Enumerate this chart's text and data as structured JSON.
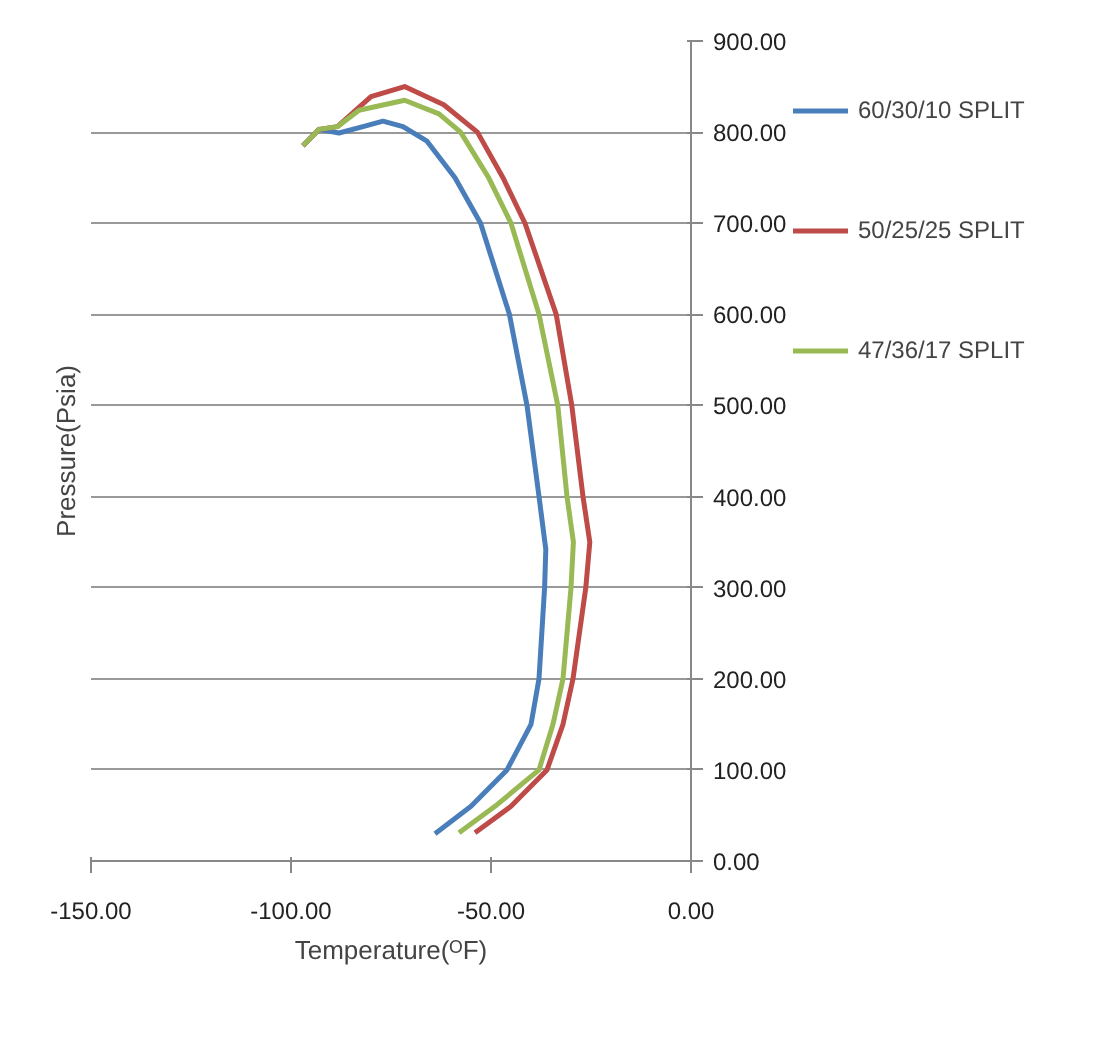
{
  "chart_data": {
    "type": "line",
    "xlabel": "Temperature(ᴼF)",
    "ylabel": "Pressure(Psia)",
    "xlim": [
      -150,
      0
    ],
    "ylim": [
      0,
      900
    ],
    "xticks": [
      {
        "value": -150,
        "label": "-150.00"
      },
      {
        "value": -100,
        "label": "-100.00"
      },
      {
        "value": -50,
        "label": "-50.00"
      },
      {
        "value": 0,
        "label": "0.00"
      }
    ],
    "yticks": [
      {
        "value": 0,
        "label": "0.00"
      },
      {
        "value": 100,
        "label": "100.00"
      },
      {
        "value": 200,
        "label": "200.00"
      },
      {
        "value": 300,
        "label": "300.00"
      },
      {
        "value": 400,
        "label": "400.00"
      },
      {
        "value": 500,
        "label": "500.00"
      },
      {
        "value": 600,
        "label": "600.00"
      },
      {
        "value": 700,
        "label": "700.00"
      },
      {
        "value": 800,
        "label": "800.00"
      },
      {
        "value": 900,
        "label": "900.00"
      }
    ],
    "grid": "y",
    "legend": "right",
    "marker": "none",
    "line_style": "solid",
    "series": [
      {
        "name": "60/30/10 SPLIT",
        "color": "#4a7ebb",
        "x": [
          -64,
          -55,
          -46,
          -40,
          -38,
          -36.6,
          -36.3,
          -38,
          -41,
          -45.4,
          -52.6,
          -59,
          -66,
          -72,
          -77,
          -82,
          -88,
          -93,
          -97
        ],
        "values": [
          30,
          60,
          100,
          150,
          200,
          300,
          342,
          400,
          500,
          600,
          700,
          750,
          790,
          806,
          812,
          806,
          799,
          803,
          785
        ]
      },
      {
        "name": "50/25/25 SPLIT",
        "color": "#be4b48",
        "x": [
          -54,
          -45,
          -36,
          -32,
          -29.5,
          -26.3,
          -25.3,
          -27,
          -29.8,
          -33.7,
          -41.5,
          -47,
          -53.4,
          -61.8,
          -71.6,
          -80,
          -88.4,
          -93,
          -97
        ],
        "values": [
          31,
          60,
          100,
          150,
          200,
          300,
          350,
          400,
          500,
          600,
          700,
          750,
          800,
          830,
          850,
          839,
          806,
          803,
          785
        ]
      },
      {
        "name": "47/36/17 SPLIT",
        "color": "#98b954",
        "x": [
          -58,
          -49,
          -38,
          -34.5,
          -32,
          -30,
          -29.4,
          -31,
          -33.3,
          -38,
          -45,
          -50.6,
          -57.6,
          -63,
          -71.6,
          -83,
          -88.4,
          -93,
          -97
        ],
        "values": [
          31,
          60,
          100,
          150,
          200,
          300,
          350,
          400,
          500,
          600,
          700,
          750,
          800,
          820,
          835,
          824,
          806,
          803,
          785
        ]
      }
    ]
  }
}
